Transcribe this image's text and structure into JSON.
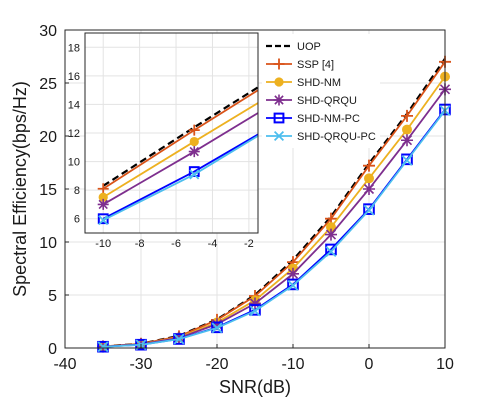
{
  "chart_data": {
    "type": "line",
    "xlabel": "SNR(dB)",
    "ylabel": "Spectral Efficiency(bps/Hz)",
    "xlim": [
      -40,
      10
    ],
    "ylim": [
      0,
      30
    ],
    "xticks": [
      -40,
      -30,
      -20,
      -10,
      0,
      10
    ],
    "yticks": [
      0,
      5,
      10,
      15,
      20,
      25,
      30
    ],
    "grid": true,
    "legend_position": "top-right",
    "x": [
      -35,
      -30,
      -25,
      -20,
      -15,
      -10,
      -5,
      0,
      5,
      10
    ],
    "series": [
      {
        "name": "UOP",
        "color": "#000000",
        "style": "dashed",
        "marker": "none",
        "values": [
          0.15,
          0.4,
          1.15,
          2.7,
          5.0,
          8.3,
          12.4,
          17.4,
          22.1,
          27.3
        ]
      },
      {
        "name": "SSP [4]",
        "color": "#d95319",
        "style": "solid",
        "marker": "plus",
        "values": [
          0.15,
          0.4,
          1.1,
          2.65,
          4.9,
          8.1,
          12.2,
          17.2,
          21.9,
          27.0
        ]
      },
      {
        "name": "SHD-NM",
        "color": "#edb120",
        "style": "solid",
        "marker": "circle",
        "values": [
          0.14,
          0.37,
          1.0,
          2.4,
          4.5,
          7.5,
          11.4,
          16.0,
          20.6,
          25.6
        ]
      },
      {
        "name": "SHD-QRQU",
        "color": "#7e2f8e",
        "style": "solid",
        "marker": "asterisk",
        "values": [
          0.13,
          0.35,
          0.95,
          2.25,
          4.2,
          7.0,
          10.7,
          15.0,
          19.6,
          24.4
        ]
      },
      {
        "name": "SHD-NM-PC",
        "color": "#0000ff",
        "style": "solid",
        "marker": "square",
        "values": [
          0.12,
          0.31,
          0.85,
          1.95,
          3.6,
          6.0,
          9.3,
          13.1,
          17.8,
          22.5
        ]
      },
      {
        "name": "SHD-QRQU-PC",
        "color": "#4dbeee",
        "style": "solid",
        "marker": "x",
        "values": [
          0.12,
          0.3,
          0.84,
          1.9,
          3.5,
          5.9,
          9.1,
          13.0,
          17.7,
          22.4
        ]
      }
    ],
    "inset": {
      "xlim": [
        -11,
        -1.5
      ],
      "ylim": [
        5,
        19
      ],
      "xticks": [
        -10,
        -8,
        -6,
        -4,
        -2
      ],
      "yticks": [
        6,
        8,
        10,
        12,
        14,
        16,
        18
      ],
      "grid": true,
      "x": [
        -10,
        -5,
        -1.5
      ],
      "series": [
        {
          "name": "UOP",
          "values": [
            8.3,
            12.4,
            15.2
          ]
        },
        {
          "name": "SSP [4]",
          "values": [
            8.1,
            12.2,
            15.0
          ]
        },
        {
          "name": "SHD-NM",
          "values": [
            7.5,
            11.4,
            14.1
          ]
        },
        {
          "name": "SHD-QRQU",
          "values": [
            7.0,
            10.7,
            13.4
          ]
        },
        {
          "name": "SHD-NM-PC",
          "values": [
            6.0,
            9.3,
            11.9
          ]
        },
        {
          "name": "SHD-QRQU-PC",
          "values": [
            5.9,
            9.1,
            11.8
          ]
        }
      ]
    }
  }
}
